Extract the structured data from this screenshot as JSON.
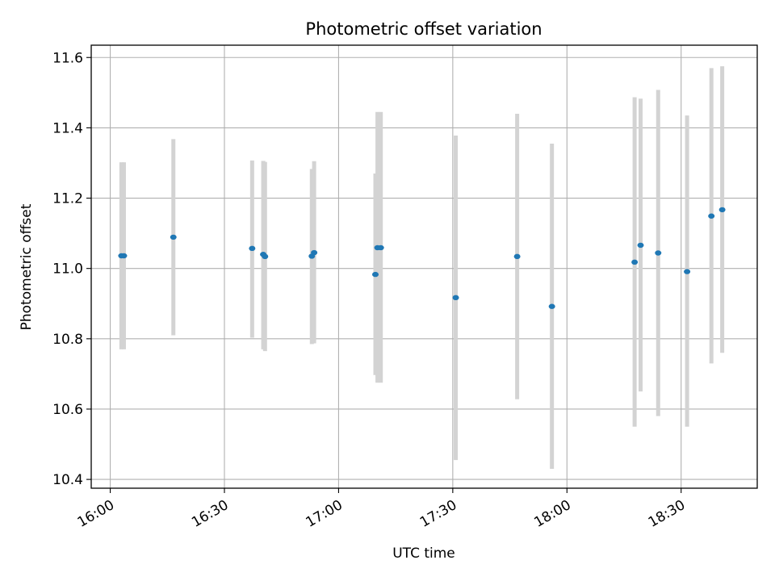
{
  "chart_data": {
    "type": "scatter",
    "title": "Photometric offset variation",
    "xlabel": "UTC time",
    "ylabel": "Photometric offset",
    "x_axis": {
      "kind": "time",
      "range": [
        "15:55",
        "18:50"
      ],
      "ticks": [
        "16:00",
        "16:30",
        "17:00",
        "17:30",
        "18:00",
        "18:30"
      ]
    },
    "y_axis": {
      "range": [
        10.375,
        11.635
      ],
      "ticks": [
        "10.4",
        "10.6",
        "10.8",
        "11.0",
        "11.2",
        "11.4",
        "11.6"
      ]
    },
    "grid": true,
    "colors": {
      "point": "#1f77b4",
      "errorbar": "#d3d3d3",
      "grid": "#b0b0b0"
    },
    "points": [
      {
        "t": "16:02:56",
        "y": 11.036,
        "lo": 10.77,
        "hi": 11.302
      },
      {
        "t": "16:03:35",
        "y": 11.036,
        "lo": 10.77,
        "hi": 11.302
      },
      {
        "t": "16:16:35",
        "y": 11.089,
        "lo": 10.81,
        "hi": 11.368
      },
      {
        "t": "16:37:17",
        "y": 11.057,
        "lo": 10.803,
        "hi": 11.307
      },
      {
        "t": "16:40:12",
        "y": 11.04,
        "lo": 10.77,
        "hi": 11.306
      },
      {
        "t": "16:40:40",
        "y": 11.034,
        "lo": 10.765,
        "hi": 11.303
      },
      {
        "t": "16:52:58",
        "y": 11.035,
        "lo": 10.785,
        "hi": 11.283
      },
      {
        "t": "16:53:34",
        "y": 11.045,
        "lo": 10.787,
        "hi": 11.305
      },
      {
        "t": "17:09:40",
        "y": 10.983,
        "lo": 10.697,
        "hi": 11.27
      },
      {
        "t": "17:10:13",
        "y": 11.059,
        "lo": 10.675,
        "hi": 11.445
      },
      {
        "t": "17:11:05",
        "y": 11.059,
        "lo": 10.675,
        "hi": 11.445
      },
      {
        "t": "17:30:47",
        "y": 10.917,
        "lo": 10.455,
        "hi": 11.378
      },
      {
        "t": "17:46:55",
        "y": 11.034,
        "lo": 10.628,
        "hi": 11.44
      },
      {
        "t": "17:56:03",
        "y": 10.892,
        "lo": 10.43,
        "hi": 11.355
      },
      {
        "t": "18:17:47",
        "y": 11.018,
        "lo": 10.55,
        "hi": 11.487
      },
      {
        "t": "18:19:21",
        "y": 11.066,
        "lo": 10.65,
        "hi": 11.483
      },
      {
        "t": "18:23:58",
        "y": 11.044,
        "lo": 10.58,
        "hi": 11.508
      },
      {
        "t": "18:31:34",
        "y": 10.991,
        "lo": 10.55,
        "hi": 11.435
      },
      {
        "t": "18:37:57",
        "y": 11.149,
        "lo": 10.73,
        "hi": 11.57
      },
      {
        "t": "18:40:48",
        "y": 11.167,
        "lo": 10.76,
        "hi": 11.575
      }
    ]
  }
}
